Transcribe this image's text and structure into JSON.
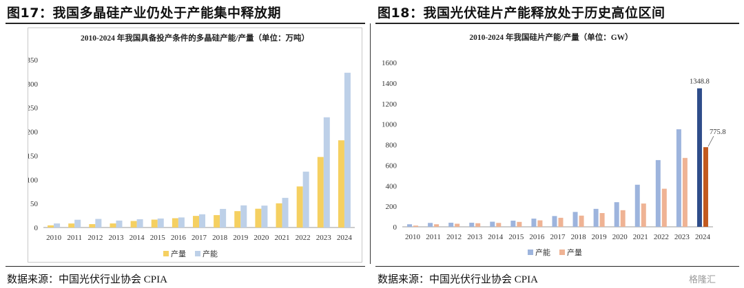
{
  "figures": {
    "left_title": "图17：我国多晶硅产业仍处于产能集中释放期",
    "right_title": "图18：我国光伏硅片产能释放处于历史高位区间",
    "left_source": "数据来源：中国光伏行业协会 CPIA",
    "right_source": "数据来源：中国光伏行业协会 CPIA",
    "watermark": "格隆汇"
  },
  "chart_data": [
    {
      "type": "bar",
      "title": "2010-2024 年我国具备投产条件的多晶硅产能/产量（单位：万吨）",
      "categories": [
        "2010",
        "2011",
        "2012",
        "2013",
        "2014",
        "2015",
        "2016",
        "2017",
        "2018",
        "2019",
        "2020",
        "2021",
        "2022",
        "2023",
        "2024"
      ],
      "series": [
        {
          "name": "产量",
          "color": "#f5d061",
          "values": [
            4.5,
            8.4,
            7.1,
            8.5,
            13.6,
            16.5,
            19.4,
            24.2,
            25.9,
            34.2,
            39.2,
            50.5,
            85.7,
            147.2,
            182.0
          ]
        },
        {
          "name": "产能",
          "color": "#bdd0e8",
          "values": [
            8.5,
            16.2,
            17.9,
            14.5,
            17.3,
            18.8,
            21.0,
            27.6,
            38.8,
            46.2,
            45.7,
            61.9,
            116.6,
            230.0,
            323.0
          ]
        }
      ],
      "ylim": [
        0,
        350
      ],
      "yticks": [
        0,
        50,
        100,
        150,
        200,
        250,
        300,
        350
      ],
      "legend": "bottom-center",
      "grid": false
    },
    {
      "type": "bar",
      "title": "2010-2024 年我国硅片产能/产量（单位：GW）",
      "categories": [
        "2010",
        "2011",
        "2012",
        "2013",
        "2014",
        "2015",
        "2016",
        "2017",
        "2018",
        "2019",
        "2020",
        "2021",
        "2022",
        "2023",
        "2024"
      ],
      "series": [
        {
          "name": "产能",
          "color": "#9db4dd",
          "highlight_color": "#2f4d8a",
          "values": [
            25,
            38,
            40,
            40,
            50,
            60,
            80,
            105,
            145,
            175,
            240,
            410,
            650,
            950,
            1348.8
          ]
        },
        {
          "name": "产量",
          "color": "#efb394",
          "highlight_color": "#c25a1f",
          "values": [
            12,
            25,
            30,
            35,
            38,
            48,
            63,
            88,
            109,
            134,
            162,
            227,
            371,
            671,
            775.8
          ]
        }
      ],
      "annotations": [
        {
          "series": "产能",
          "category": "2024",
          "text": "1348.8"
        },
        {
          "series": "产量",
          "category": "2024",
          "text": "775.8"
        }
      ],
      "ylim": [
        0,
        1600
      ],
      "yticks": [
        0,
        200,
        400,
        600,
        800,
        1000,
        1200,
        1400,
        1600
      ],
      "legend": "bottom-center",
      "grid": false
    }
  ]
}
